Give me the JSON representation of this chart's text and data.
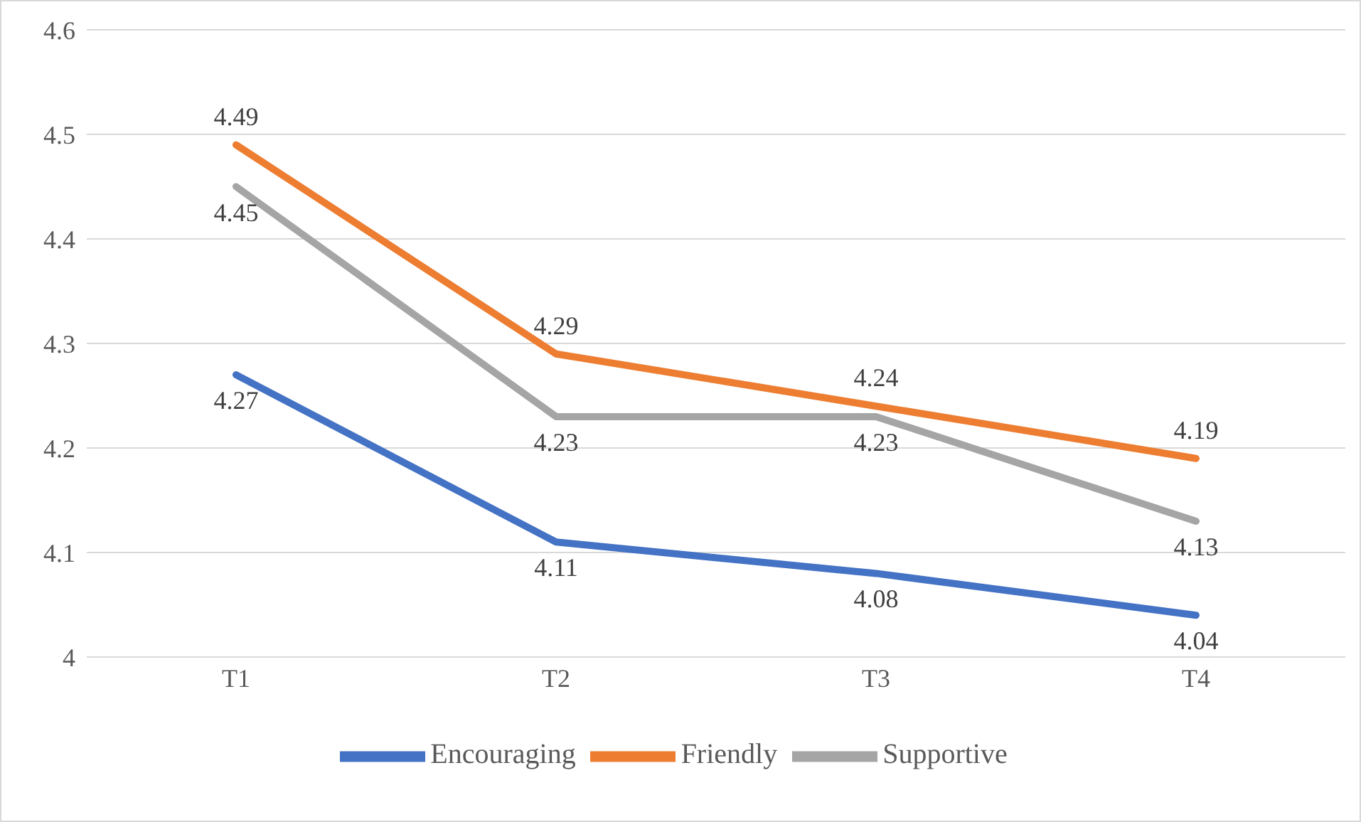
{
  "chart_data": {
    "type": "line",
    "categories": [
      "T1",
      "T2",
      "T3",
      "T4"
    ],
    "series": [
      {
        "name": "Encouraging",
        "color": "#4472c4",
        "values": [
          4.27,
          4.11,
          4.08,
          4.04
        ]
      },
      {
        "name": "Friendly",
        "color": "#ed7d31",
        "values": [
          4.49,
          4.29,
          4.24,
          4.19
        ]
      },
      {
        "name": "Supportive",
        "color": "#a5a5a5",
        "values": [
          4.45,
          4.23,
          4.23,
          4.13
        ]
      }
    ],
    "ylim": [
      4,
      4.6
    ],
    "yticks": [
      4,
      4.1,
      4.2,
      4.3,
      4.4,
      4.5,
      4.6
    ],
    "grid": "y",
    "legend": "bottom",
    "data_labels": true,
    "marker": "none",
    "line_style": "solid"
  }
}
